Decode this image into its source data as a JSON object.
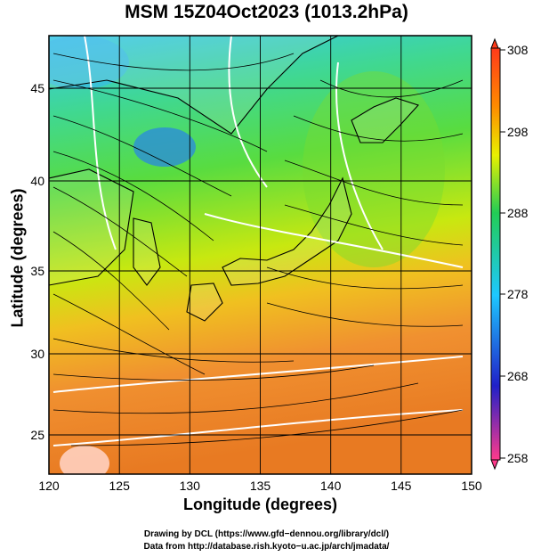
{
  "title": "MSM 15Z04Oct2023 (1013.2hPa)",
  "map": {
    "x_axis_label": "Longitude (degrees)",
    "y_axis_label": "Latitude  (degrees)",
    "lon_ticks": [
      "120",
      "125",
      "130",
      "135",
      "140",
      "145",
      "150"
    ],
    "lat_ticks": [
      "25",
      "30",
      "35",
      "40",
      "45"
    ],
    "lon_range": [
      120,
      150
    ],
    "lat_range": [
      22.4,
      47.6
    ],
    "field": "temperature (K) shaded with wind streamlines",
    "contour_color": "#ffffff",
    "streamline_color": "#000000"
  },
  "colorbar": {
    "ticks": [
      "308",
      "298",
      "288",
      "278",
      "268",
      "258"
    ],
    "range": [
      258,
      308
    ],
    "colors": [
      "#ff3a8c",
      "#2020c8",
      "#1ec8ff",
      "#22cc55",
      "#e8f000",
      "#ff8a00",
      "#ff3a1a"
    ]
  },
  "credits": {
    "drawing": "Drawing by DCL (https://www.gfd−dennou.org/library/dcl/)",
    "data": "Data from http://database.rish.kyoto−u.ac.jp/arch/jmadata/"
  }
}
